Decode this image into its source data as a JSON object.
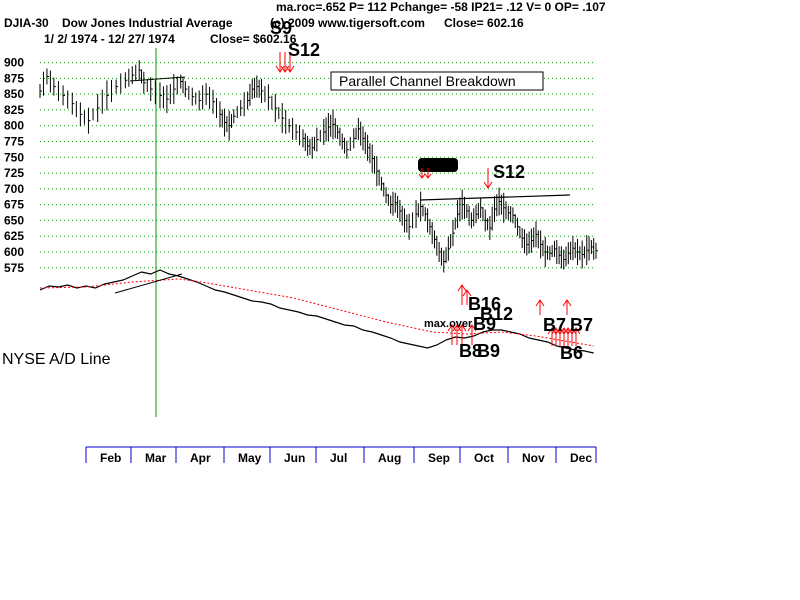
{
  "header": {
    "symbol": "DJIA-30",
    "name": "Dow Jones Industrial Average",
    "indicators": "ma.roc=.652 P=  112 Pchange= -58 IP21= .12 V= 0 OP= .107",
    "date_range": "1/ 2/ 1974 -  12/ 27/ 1974",
    "close_label": "Close= $602.16",
    "copyright": "(c) 2009 www.tigersoft.com",
    "close_right": "Close=   602.16"
  },
  "annotations": {
    "channel_box": "Parallel Channel Breakdown",
    "ad_line_label": "NYSE A/D Line",
    "max_over": "max.over"
  },
  "colors": {
    "price": "#000000",
    "ad_line": "#000000",
    "ad_ma": "#ff0000",
    "grid": "#00a000",
    "vline": "#00a000",
    "sell_arrow": "#ff0000",
    "buy_arrow": "#ff0000",
    "axis": "#0000cc"
  },
  "chart_data": {
    "type": "line",
    "title": "DJIA-30  Dow Jones Industrial Average",
    "y_ticks": [
      900,
      875,
      850,
      825,
      800,
      775,
      750,
      725,
      700,
      675,
      650,
      625,
      600,
      575
    ],
    "ylim": [
      562,
      912
    ],
    "grid": true,
    "x_categories": [
      "Feb",
      "Mar",
      "Apr",
      "May",
      "Jun",
      "Jul",
      "Aug",
      "Sep",
      "Oct",
      "Nov",
      "Dec"
    ],
    "series": [
      {
        "name": "DJIA",
        "points": [
          [
            0,
            855
          ],
          [
            6,
            878
          ],
          [
            12,
            862
          ],
          [
            20,
            848
          ],
          [
            28,
            835
          ],
          [
            35,
            818
          ],
          [
            42,
            808
          ],
          [
            50,
            828
          ],
          [
            58,
            848
          ],
          [
            66,
            862
          ],
          [
            74,
            872
          ],
          [
            80,
            880
          ],
          [
            86,
            888
          ],
          [
            90,
            868
          ],
          [
            96,
            858
          ],
          [
            104,
            848
          ],
          [
            110,
            842
          ],
          [
            116,
            858
          ],
          [
            122,
            870
          ],
          [
            126,
            858
          ],
          [
            132,
            846
          ],
          [
            138,
            840
          ],
          [
            144,
            850
          ],
          [
            150,
            838
          ],
          [
            156,
            818
          ],
          [
            160,
            805
          ],
          [
            164,
            800
          ],
          [
            168,
            815
          ],
          [
            174,
            828
          ],
          [
            180,
            840
          ],
          [
            184,
            858
          ],
          [
            188,
            862
          ],
          [
            192,
            855
          ],
          [
            198,
            845
          ],
          [
            204,
            828
          ],
          [
            210,
            812
          ],
          [
            216,
            800
          ],
          [
            222,
            790
          ],
          [
            228,
            780
          ],
          [
            232,
            768
          ],
          [
            236,
            765
          ],
          [
            240,
            778
          ],
          [
            246,
            790
          ],
          [
            250,
            798
          ],
          [
            254,
            802
          ],
          [
            258,
            790
          ],
          [
            262,
            775
          ],
          [
            266,
            762
          ],
          [
            272,
            780
          ],
          [
            276,
            795
          ],
          [
            280,
            780
          ],
          [
            284,
            765
          ],
          [
            288,
            748
          ],
          [
            292,
            728
          ],
          [
            296,
            708
          ],
          [
            300,
            690
          ],
          [
            304,
            675
          ],
          [
            308,
            678
          ],
          [
            312,
            665
          ],
          [
            316,
            650
          ],
          [
            320,
            640
          ],
          [
            326,
            660
          ],
          [
            330,
            672
          ],
          [
            334,
            660
          ],
          [
            338,
            640
          ],
          [
            342,
            620
          ],
          [
            346,
            600
          ],
          [
            350,
            585
          ],
          [
            354,
            605
          ],
          [
            358,
            630
          ],
          [
            362,
            660
          ],
          [
            366,
            675
          ],
          [
            370,
            665
          ],
          [
            374,
            650
          ],
          [
            378,
            660
          ],
          [
            382,
            670
          ],
          [
            386,
            650
          ],
          [
            390,
            638
          ],
          [
            394,
            668
          ],
          [
            398,
            680
          ],
          [
            402,
            670
          ],
          [
            406,
            662
          ],
          [
            410,
            658
          ],
          [
            414,
            640
          ],
          [
            418,
            622
          ],
          [
            422,
            612
          ],
          [
            426,
            618
          ],
          [
            430,
            628
          ],
          [
            434,
            612
          ],
          [
            438,
            600
          ],
          [
            442,
            598
          ],
          [
            446,
            605
          ],
          [
            450,
            595
          ],
          [
            454,
            588
          ],
          [
            458,
            598
          ],
          [
            462,
            606
          ],
          [
            466,
            600
          ],
          [
            470,
            596
          ],
          [
            474,
            603
          ],
          [
            478,
            608
          ],
          [
            482,
            602
          ]
        ],
        "x_domain": [
          0,
          482
        ]
      }
    ],
    "ad_line": {
      "name": "NYSE A/D Line",
      "points": [
        [
          0,
          38
        ],
        [
          8,
          34
        ],
        [
          16,
          35
        ],
        [
          24,
          33
        ],
        [
          32,
          36
        ],
        [
          40,
          34
        ],
        [
          48,
          36
        ],
        [
          56,
          32
        ],
        [
          64,
          30
        ],
        [
          72,
          28
        ],
        [
          80,
          24
        ],
        [
          88,
          20
        ],
        [
          96,
          22
        ],
        [
          104,
          18
        ],
        [
          112,
          22
        ],
        [
          120,
          24
        ],
        [
          128,
          27
        ],
        [
          136,
          30
        ],
        [
          144,
          34
        ],
        [
          152,
          38
        ],
        [
          160,
          40
        ],
        [
          168,
          43
        ],
        [
          176,
          46
        ],
        [
          184,
          49
        ],
        [
          192,
          50
        ],
        [
          200,
          52
        ],
        [
          208,
          56
        ],
        [
          216,
          58
        ],
        [
          224,
          60
        ],
        [
          232,
          63
        ],
        [
          240,
          64
        ],
        [
          248,
          67
        ],
        [
          256,
          70
        ],
        [
          264,
          73
        ],
        [
          272,
          74
        ],
        [
          280,
          78
        ],
        [
          288,
          80
        ],
        [
          296,
          83
        ],
        [
          304,
          86
        ],
        [
          312,
          90
        ],
        [
          320,
          92
        ],
        [
          328,
          94
        ],
        [
          336,
          96
        ],
        [
          344,
          93
        ],
        [
          352,
          88
        ],
        [
          360,
          85
        ],
        [
          368,
          86
        ],
        [
          376,
          84
        ],
        [
          384,
          80
        ],
        [
          392,
          78
        ],
        [
          400,
          78
        ],
        [
          408,
          80
        ],
        [
          416,
          82
        ],
        [
          424,
          86
        ],
        [
          432,
          88
        ],
        [
          440,
          90
        ],
        [
          448,
          94
        ],
        [
          456,
          96
        ],
        [
          464,
          98
        ],
        [
          472,
          99
        ],
        [
          480,
          101
        ]
      ],
      "ma_points": [
        [
          0,
          36
        ],
        [
          40,
          35
        ],
        [
          80,
          30
        ],
        [
          120,
          27
        ],
        [
          140,
          30
        ],
        [
          180,
          38
        ],
        [
          220,
          46
        ],
        [
          260,
          58
        ],
        [
          300,
          70
        ],
        [
          340,
          80
        ],
        [
          370,
          82
        ],
        [
          400,
          80
        ],
        [
          430,
          84
        ],
        [
          460,
          90
        ],
        [
          480,
          94
        ]
      ]
    },
    "signals": [
      {
        "label": "S9",
        "type": "sell"
      },
      {
        "label": "S12",
        "type": "sell"
      },
      {
        "label": "S9",
        "type": "sell"
      },
      {
        "label": "S12",
        "type": "sell"
      },
      {
        "label": "B16",
        "type": "buy"
      },
      {
        "label": "B12",
        "type": "buy"
      },
      {
        "label": "B9",
        "type": "buy"
      },
      {
        "label": "B8",
        "type": "buy"
      },
      {
        "label": "B9",
        "type": "buy"
      },
      {
        "label": "B7",
        "type": "buy"
      },
      {
        "label": "B7",
        "type": "buy"
      },
      {
        "label": "B6",
        "type": "buy"
      }
    ]
  }
}
